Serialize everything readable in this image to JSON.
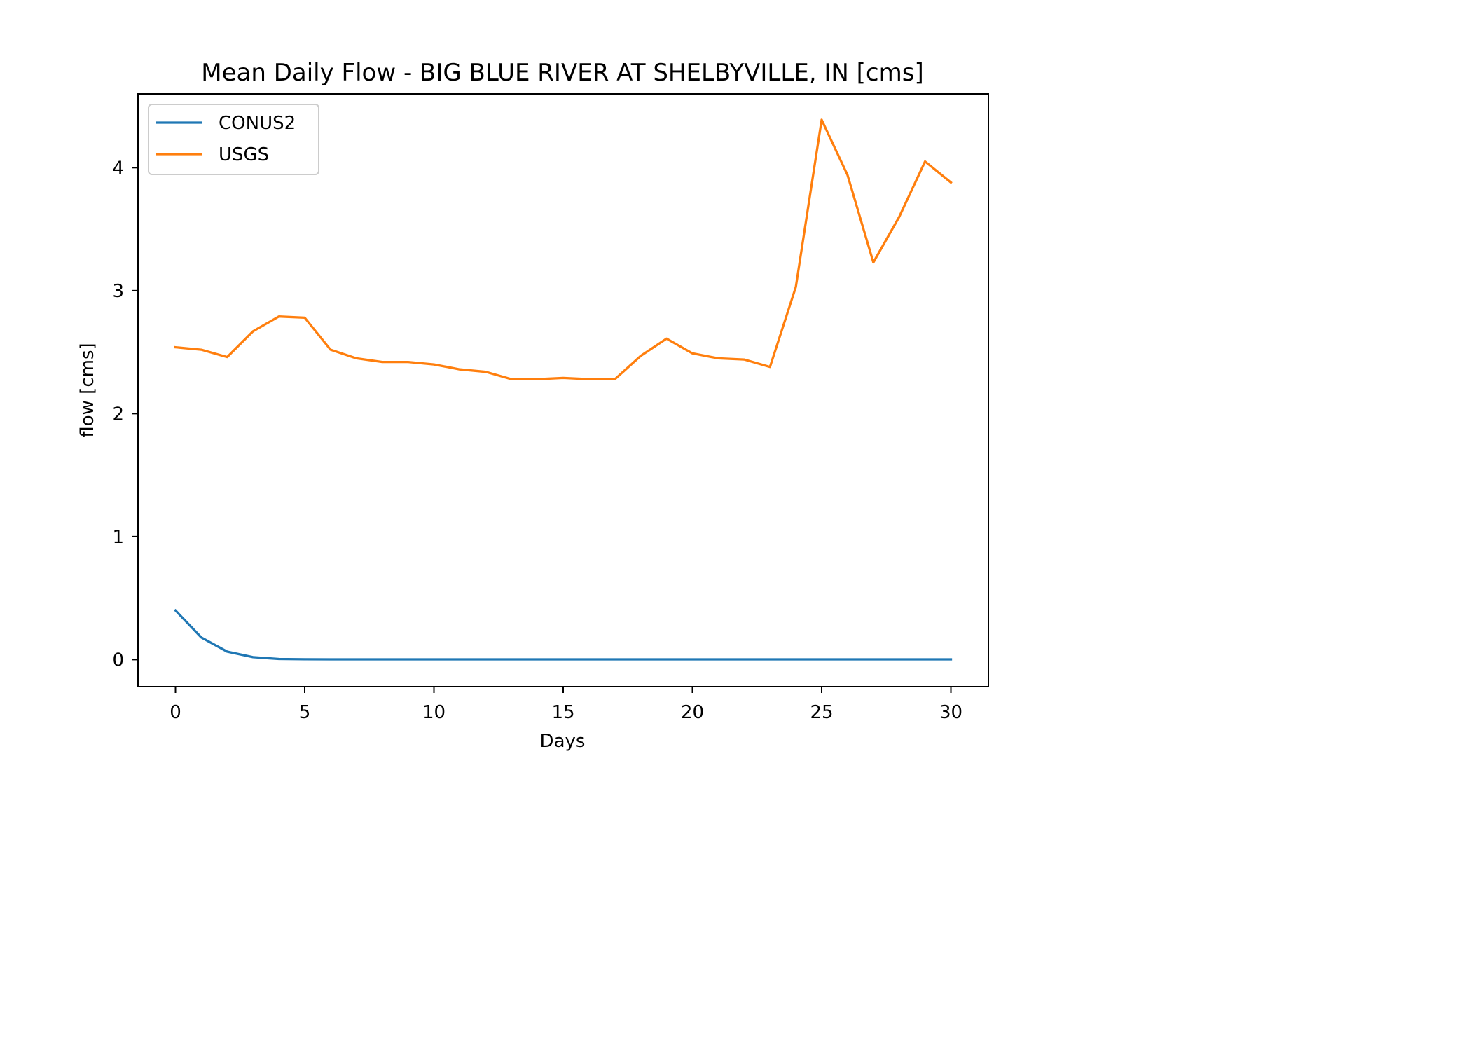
{
  "chart_data": {
    "type": "line",
    "title": "Mean Daily Flow - BIG BLUE RIVER AT SHELBYVILLE, IN [cms]",
    "xlabel": "Days",
    "ylabel": "flow [cms]",
    "xlim": [
      -1.45,
      31.45
    ],
    "ylim": [
      -0.22,
      4.6
    ],
    "xticks": [
      0,
      5,
      10,
      15,
      20,
      25,
      30
    ],
    "yticks": [
      0,
      1,
      2,
      3,
      4
    ],
    "grid": false,
    "legend_position": "upper-left",
    "x": [
      0,
      1,
      2,
      3,
      4,
      5,
      6,
      7,
      8,
      9,
      10,
      11,
      12,
      13,
      14,
      15,
      16,
      17,
      18,
      19,
      20,
      21,
      22,
      23,
      24,
      25,
      26,
      27,
      28,
      29,
      30
    ],
    "series": [
      {
        "name": "CONUS2",
        "color": "#1f77b4",
        "values": [
          0.4,
          0.18,
          0.065,
          0.02,
          0.005,
          0.003,
          0.002,
          0.002,
          0.002,
          0.002,
          0.002,
          0.002,
          0.002,
          0.002,
          0.002,
          0.002,
          0.002,
          0.002,
          0.002,
          0.002,
          0.002,
          0.002,
          0.002,
          0.002,
          0.002,
          0.002,
          0.002,
          0.002,
          0.002,
          0.002,
          0.002
        ]
      },
      {
        "name": "USGS",
        "color": "#ff7f0e",
        "values": [
          2.54,
          2.52,
          2.46,
          2.67,
          2.79,
          2.78,
          2.52,
          2.45,
          2.42,
          2.42,
          2.4,
          2.36,
          2.34,
          2.28,
          2.28,
          2.29,
          2.28,
          2.28,
          2.47,
          2.61,
          2.49,
          2.45,
          2.44,
          2.38,
          3.03,
          4.39,
          3.94,
          3.23,
          3.6,
          4.05,
          3.88
        ]
      }
    ]
  }
}
